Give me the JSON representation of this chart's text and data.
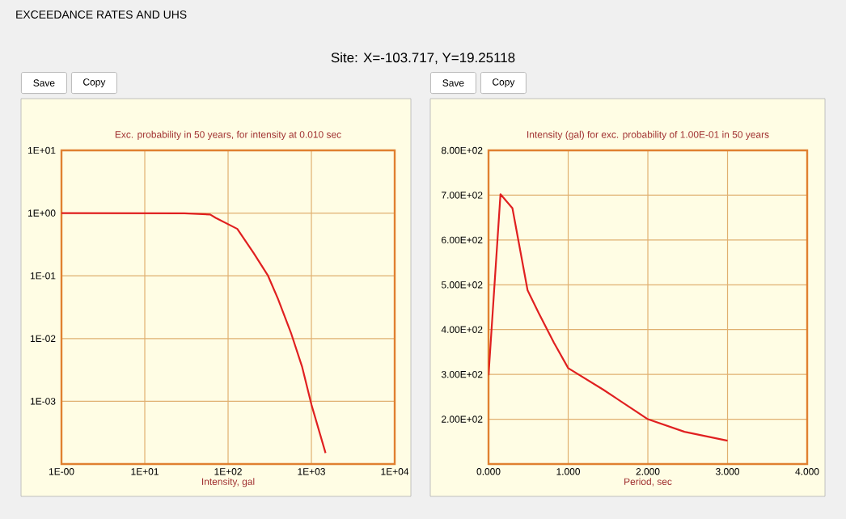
{
  "chart_data": [
    {
      "type": "other",
      "title": "EXCEEDANCE RATES AND UHS",
      "subtitle": "Site: X=-103.717, Y=19.25118"
    },
    {
      "type": "line",
      "title": "Exc. probability in 50 years, for intensity at 0.010 sec",
      "xlabel": "Intensity, gal",
      "log": "xy",
      "grid": true,
      "color": "#e02020",
      "x": [
        1,
        30,
        61,
        71,
        129,
        203,
        302,
        397,
        575,
        776,
        1000,
        1479
      ],
      "values": [
        1,
        0.99,
        0.95,
        0.84,
        0.56,
        0.23,
        0.1,
        0.043,
        0.0118,
        0.0035,
        0.00089,
        0.00015
      ],
      "xlim": [
        1,
        10000
      ],
      "ylim": [
        0.0001,
        10
      ],
      "xticks": [
        {
          "value": 1,
          "label": "1E-00"
        },
        {
          "value": 10,
          "label": "1E+01"
        },
        {
          "value": 100,
          "label": "1E+02"
        },
        {
          "value": 1000,
          "label": "1E+03"
        },
        {
          "value": 10000,
          "label": "1E+04"
        }
      ],
      "yticks": [
        {
          "value": 0.0001,
          "label": null
        },
        {
          "value": 0.001,
          "label": "1E-03"
        },
        {
          "value": 0.01,
          "label": "1E-02"
        },
        {
          "value": 0.1,
          "label": "1E-01"
        },
        {
          "value": 1,
          "label": "1E+00"
        },
        {
          "value": 10,
          "label": "1E+01"
        }
      ],
      "annotations": [
        "Save",
        "Copy"
      ]
    },
    {
      "type": "line",
      "title": "Intensity (gal) for exc. probability of 1.00E-01 in 50 years",
      "xlabel": "Period, sec",
      "grid": true,
      "color": "#e02020",
      "x": [
        0,
        0.15,
        0.3,
        0.49,
        0.63,
        0.82,
        1.0,
        1.44,
        2.0,
        2.46,
        3.0
      ],
      "values": [
        298,
        702,
        671,
        488,
        437,
        371,
        314,
        266,
        200,
        172,
        152
      ],
      "xlim": [
        0,
        4
      ],
      "ylim": [
        100,
        800
      ],
      "xticks": [
        {
          "value": 0,
          "label": "0.000"
        },
        {
          "value": 1,
          "label": "1.000"
        },
        {
          "value": 2,
          "label": "2.000"
        },
        {
          "value": 3,
          "label": "3.000"
        },
        {
          "value": 4,
          "label": "4.000"
        }
      ],
      "yticks": [
        {
          "value": 100,
          "label": null
        },
        {
          "value": 200,
          "label": "2.00E+02"
        },
        {
          "value": 300,
          "label": "3.00E+02"
        },
        {
          "value": 400,
          "label": "4.00E+02"
        },
        {
          "value": 500,
          "label": "5.00E+02"
        },
        {
          "value": 600,
          "label": "6.00E+02"
        },
        {
          "value": 700,
          "label": "7.00E+02"
        },
        {
          "value": 800,
          "label": "8.00E+02"
        }
      ],
      "annotations": [
        "Save",
        "Copy"
      ]
    }
  ]
}
